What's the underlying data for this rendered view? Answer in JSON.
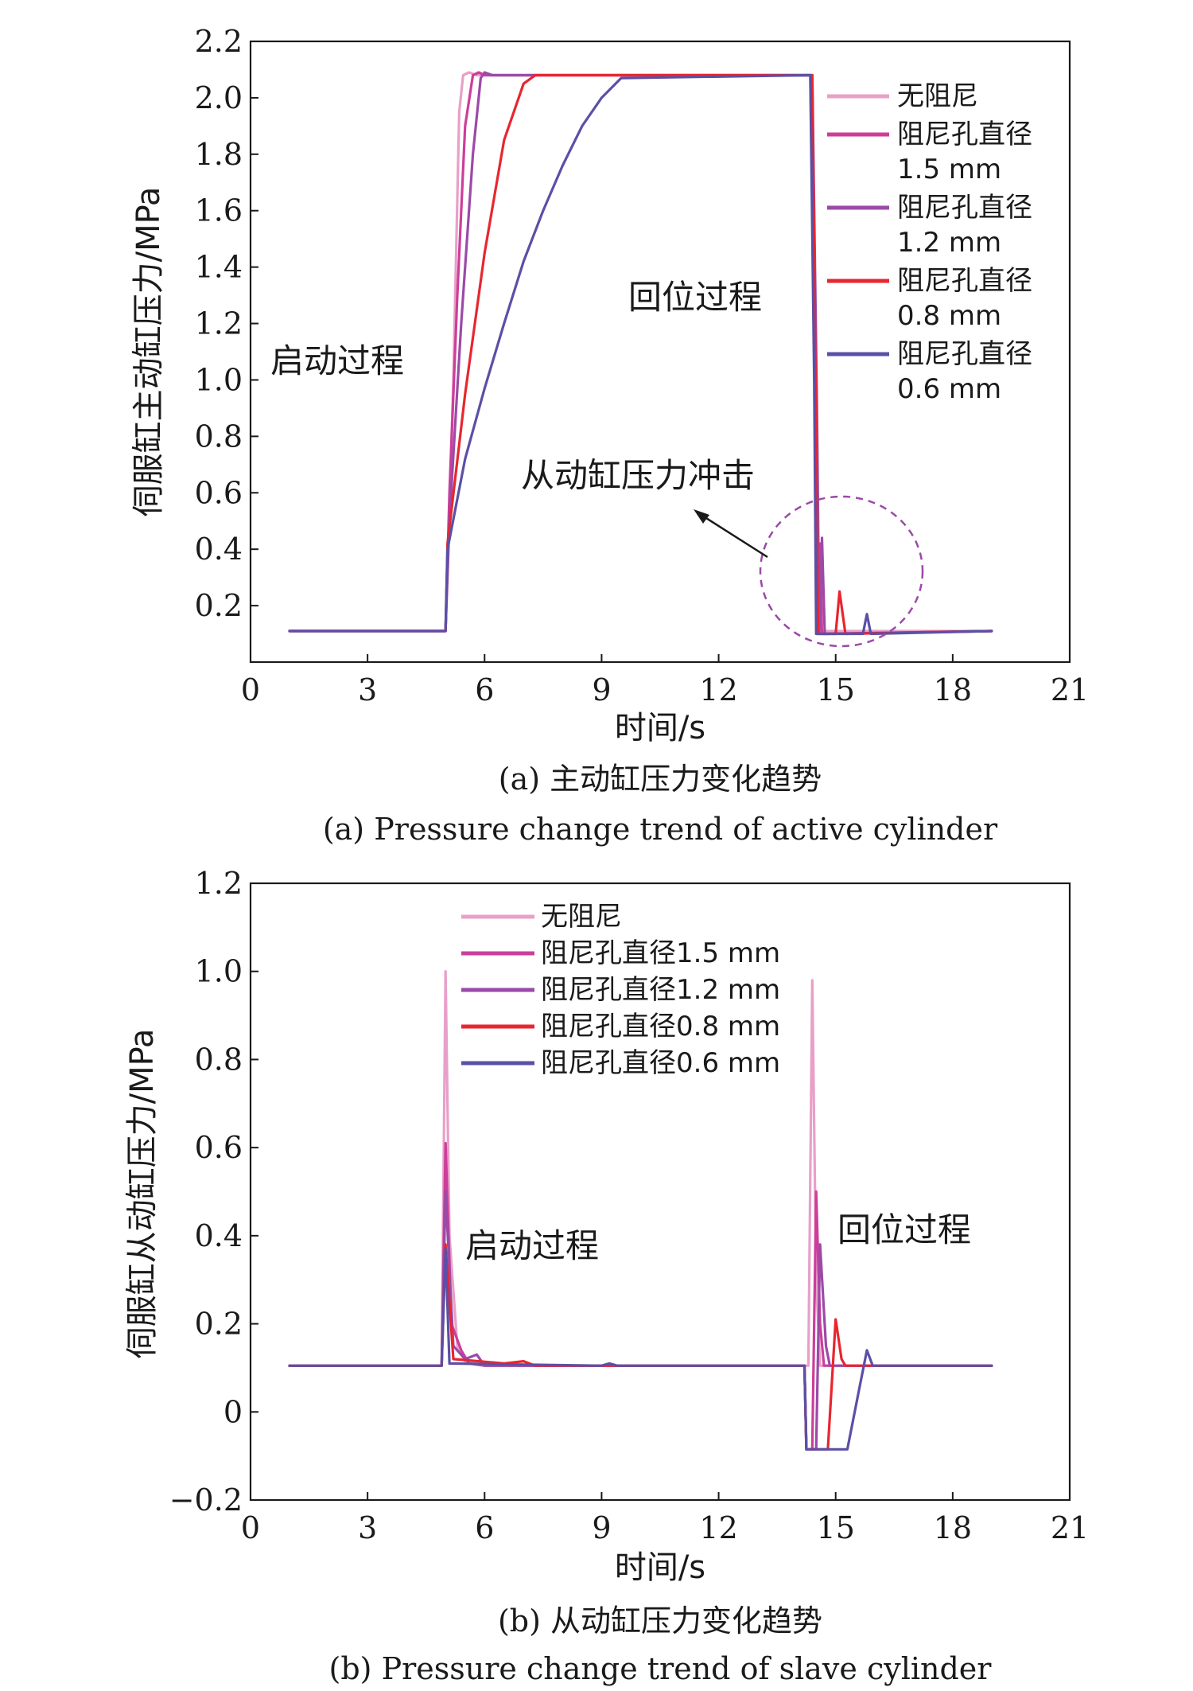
{
  "chart_data": [
    {
      "type": "line",
      "xlabel": "时间/s",
      "ylabel": "伺服缸主动缸压力/MPa",
      "xlim": [
        0,
        21
      ],
      "ylim": [
        0,
        2.2
      ],
      "xticks": [
        "0",
        "3",
        "6",
        "9",
        "12",
        "15",
        "18",
        "21"
      ],
      "yticks": [
        "0.2",
        "0.4",
        "0.6",
        "0.8",
        "1.0",
        "1.2",
        "1.4",
        "1.6",
        "1.8",
        "2.0",
        "2.2"
      ],
      "caption_cn": "(a) 主动缸压力变化趋势",
      "caption_en": "(a) Pressure change trend of active cylinder",
      "annotations": {
        "start": "启动过程",
        "return": "回位过程",
        "impact": "从动缸压力冲击"
      },
      "legend": {
        "position": "right",
        "entries": [
          {
            "lines": [
              "无阻尼"
            ]
          },
          {
            "lines": [
              "阻尼孔直径",
              "1.5 mm"
            ]
          },
          {
            "lines": [
              "阻尼孔直径",
              "1.2 mm"
            ]
          },
          {
            "lines": [
              "阻尼孔直径",
              "0.8 mm"
            ]
          },
          {
            "lines": [
              "阻尼孔直径",
              "0.6 mm"
            ]
          }
        ]
      },
      "series": [
        {
          "color": "#e8a0c8",
          "points": [
            [
              1.0,
              0.11
            ],
            [
              5.0,
              0.11
            ],
            [
              5.2,
              1.0
            ],
            [
              5.35,
              1.95
            ],
            [
              5.45,
              2.08
            ],
            [
              5.6,
              2.09
            ],
            [
              5.8,
              2.08
            ],
            [
              14.35,
              2.08
            ],
            [
              14.45,
              1.2
            ],
            [
              14.55,
              0.2
            ],
            [
              14.62,
              0.11
            ],
            [
              19.0,
              0.11
            ]
          ]
        },
        {
          "color": "#cc3e9a",
          "points": [
            [
              1.0,
              0.11
            ],
            [
              5.0,
              0.11
            ],
            [
              5.1,
              0.6
            ],
            [
              5.3,
              1.3
            ],
            [
              5.5,
              1.9
            ],
            [
              5.7,
              2.08
            ],
            [
              5.85,
              2.09
            ],
            [
              6.0,
              2.08
            ],
            [
              14.38,
              2.08
            ],
            [
              14.5,
              1.0
            ],
            [
              14.55,
              0.1
            ],
            [
              14.6,
              0.42
            ],
            [
              14.65,
              0.1
            ],
            [
              19.0,
              0.11
            ]
          ]
        },
        {
          "color": "#9b4aa8",
          "points": [
            [
              1.0,
              0.11
            ],
            [
              5.0,
              0.11
            ],
            [
              5.1,
              0.5
            ],
            [
              5.4,
              1.2
            ],
            [
              5.7,
              1.8
            ],
            [
              5.9,
              2.07
            ],
            [
              6.0,
              2.09
            ],
            [
              6.2,
              2.08
            ],
            [
              14.4,
              2.08
            ],
            [
              14.52,
              0.9
            ],
            [
              14.58,
              0.1
            ],
            [
              14.65,
              0.44
            ],
            [
              14.72,
              0.1
            ],
            [
              19.0,
              0.11
            ]
          ]
        },
        {
          "color": "#e8262f",
          "points": [
            [
              1.0,
              0.11
            ],
            [
              5.0,
              0.11
            ],
            [
              5.05,
              0.42
            ],
            [
              5.5,
              0.95
            ],
            [
              6.0,
              1.45
            ],
            [
              6.5,
              1.85
            ],
            [
              7.0,
              2.05
            ],
            [
              7.3,
              2.08
            ],
            [
              14.4,
              2.08
            ],
            [
              14.5,
              0.8
            ],
            [
              14.55,
              0.1
            ],
            [
              14.7,
              0.1
            ],
            [
              15.0,
              0.1
            ],
            [
              15.1,
              0.25
            ],
            [
              15.25,
              0.1
            ],
            [
              19.0,
              0.11
            ]
          ]
        },
        {
          "color": "#5a50a6",
          "points": [
            [
              1.0,
              0.11
            ],
            [
              5.0,
              0.11
            ],
            [
              5.05,
              0.4
            ],
            [
              5.5,
              0.72
            ],
            [
              6.0,
              0.97
            ],
            [
              6.5,
              1.2
            ],
            [
              7.0,
              1.42
            ],
            [
              7.5,
              1.6
            ],
            [
              8.0,
              1.76
            ],
            [
              8.5,
              1.9
            ],
            [
              9.0,
              2.0
            ],
            [
              9.5,
              2.07
            ],
            [
              14.35,
              2.08
            ],
            [
              14.45,
              1.0
            ],
            [
              14.5,
              0.1
            ],
            [
              14.7,
              0.1
            ],
            [
              15.0,
              0.1
            ],
            [
              15.7,
              0.1
            ],
            [
              15.8,
              0.17
            ],
            [
              15.9,
              0.1
            ],
            [
              19.0,
              0.11
            ]
          ]
        }
      ]
    },
    {
      "type": "line",
      "xlabel": "时间/s",
      "ylabel": "伺服缸从动缸压力/MPa",
      "xlim": [
        0,
        21
      ],
      "ylim": [
        -0.2,
        1.2
      ],
      "xticks": [
        "0",
        "3",
        "6",
        "9",
        "12",
        "15",
        "18",
        "21"
      ],
      "yticks": [
        "−0.2",
        "0",
        "0.2",
        "0.4",
        "0.6",
        "0.8",
        "1.0",
        "1.2"
      ],
      "caption_cn": "(b) 从动缸压力变化趋势",
      "caption_en": "(b) Pressure change trend of slave cylinder",
      "annotations": {
        "start": "启动过程",
        "return": "回位过程"
      },
      "legend": {
        "position": "top-left",
        "entries": [
          {
            "lines": [
              "无阻尼"
            ]
          },
          {
            "lines": [
              "阻尼孔直径1.5 mm"
            ]
          },
          {
            "lines": [
              "阻尼孔直径1.2 mm"
            ]
          },
          {
            "lines": [
              "阻尼孔直径0.8 mm"
            ]
          },
          {
            "lines": [
              "阻尼孔直径0.6 mm"
            ]
          }
        ]
      },
      "series": [
        {
          "color": "#e8a0c8",
          "points": [
            [
              1.0,
              0.105
            ],
            [
              4.9,
              0.105
            ],
            [
              5.0,
              1.0
            ],
            [
              5.1,
              0.4
            ],
            [
              5.3,
              0.15
            ],
            [
              5.5,
              0.115
            ],
            [
              6.0,
              0.105
            ],
            [
              14.3,
              0.105
            ],
            [
              14.4,
              0.98
            ],
            [
              14.5,
              0.3
            ],
            [
              14.6,
              0.105
            ],
            [
              19.0,
              0.105
            ]
          ]
        },
        {
          "color": "#cc3e9a",
          "points": [
            [
              1.0,
              0.105
            ],
            [
              4.9,
              0.105
            ],
            [
              5.0,
              0.61
            ],
            [
              5.15,
              0.2
            ],
            [
              5.4,
              0.14
            ],
            [
              5.6,
              0.11
            ],
            [
              6.0,
              0.105
            ],
            [
              14.2,
              0.105
            ],
            [
              14.25,
              -0.085
            ],
            [
              14.4,
              -0.085
            ],
            [
              14.5,
              0.5
            ],
            [
              14.6,
              0.2
            ],
            [
              14.7,
              0.105
            ],
            [
              19.0,
              0.105
            ]
          ]
        },
        {
          "color": "#9b4aa8",
          "points": [
            [
              1.0,
              0.105
            ],
            [
              4.9,
              0.105
            ],
            [
              5.0,
              0.5
            ],
            [
              5.2,
              0.15
            ],
            [
              5.5,
              0.12
            ],
            [
              5.8,
              0.13
            ],
            [
              6.0,
              0.105
            ],
            [
              14.2,
              0.105
            ],
            [
              14.25,
              -0.085
            ],
            [
              14.5,
              -0.085
            ],
            [
              14.6,
              0.38
            ],
            [
              14.75,
              0.15
            ],
            [
              14.85,
              0.105
            ],
            [
              19.0,
              0.105
            ]
          ]
        },
        {
          "color": "#e8262f",
          "points": [
            [
              1.0,
              0.105
            ],
            [
              4.9,
              0.105
            ],
            [
              5.0,
              0.38
            ],
            [
              5.2,
              0.12
            ],
            [
              6.5,
              0.11
            ],
            [
              7.0,
              0.115
            ],
            [
              7.3,
              0.105
            ],
            [
              14.2,
              0.105
            ],
            [
              14.25,
              -0.085
            ],
            [
              14.8,
              -0.085
            ],
            [
              15.0,
              0.21
            ],
            [
              15.15,
              0.12
            ],
            [
              15.25,
              0.105
            ],
            [
              19.0,
              0.105
            ]
          ]
        },
        {
          "color": "#5a50a6",
          "points": [
            [
              1.0,
              0.105
            ],
            [
              4.9,
              0.105
            ],
            [
              5.0,
              0.37
            ],
            [
              5.1,
              0.11
            ],
            [
              9.0,
              0.105
            ],
            [
              9.2,
              0.11
            ],
            [
              9.4,
              0.105
            ],
            [
              14.2,
              0.105
            ],
            [
              14.25,
              -0.085
            ],
            [
              15.3,
              -0.085
            ],
            [
              15.6,
              0.05
            ],
            [
              15.8,
              0.14
            ],
            [
              15.95,
              0.105
            ],
            [
              19.0,
              0.105
            ]
          ]
        }
      ]
    }
  ]
}
